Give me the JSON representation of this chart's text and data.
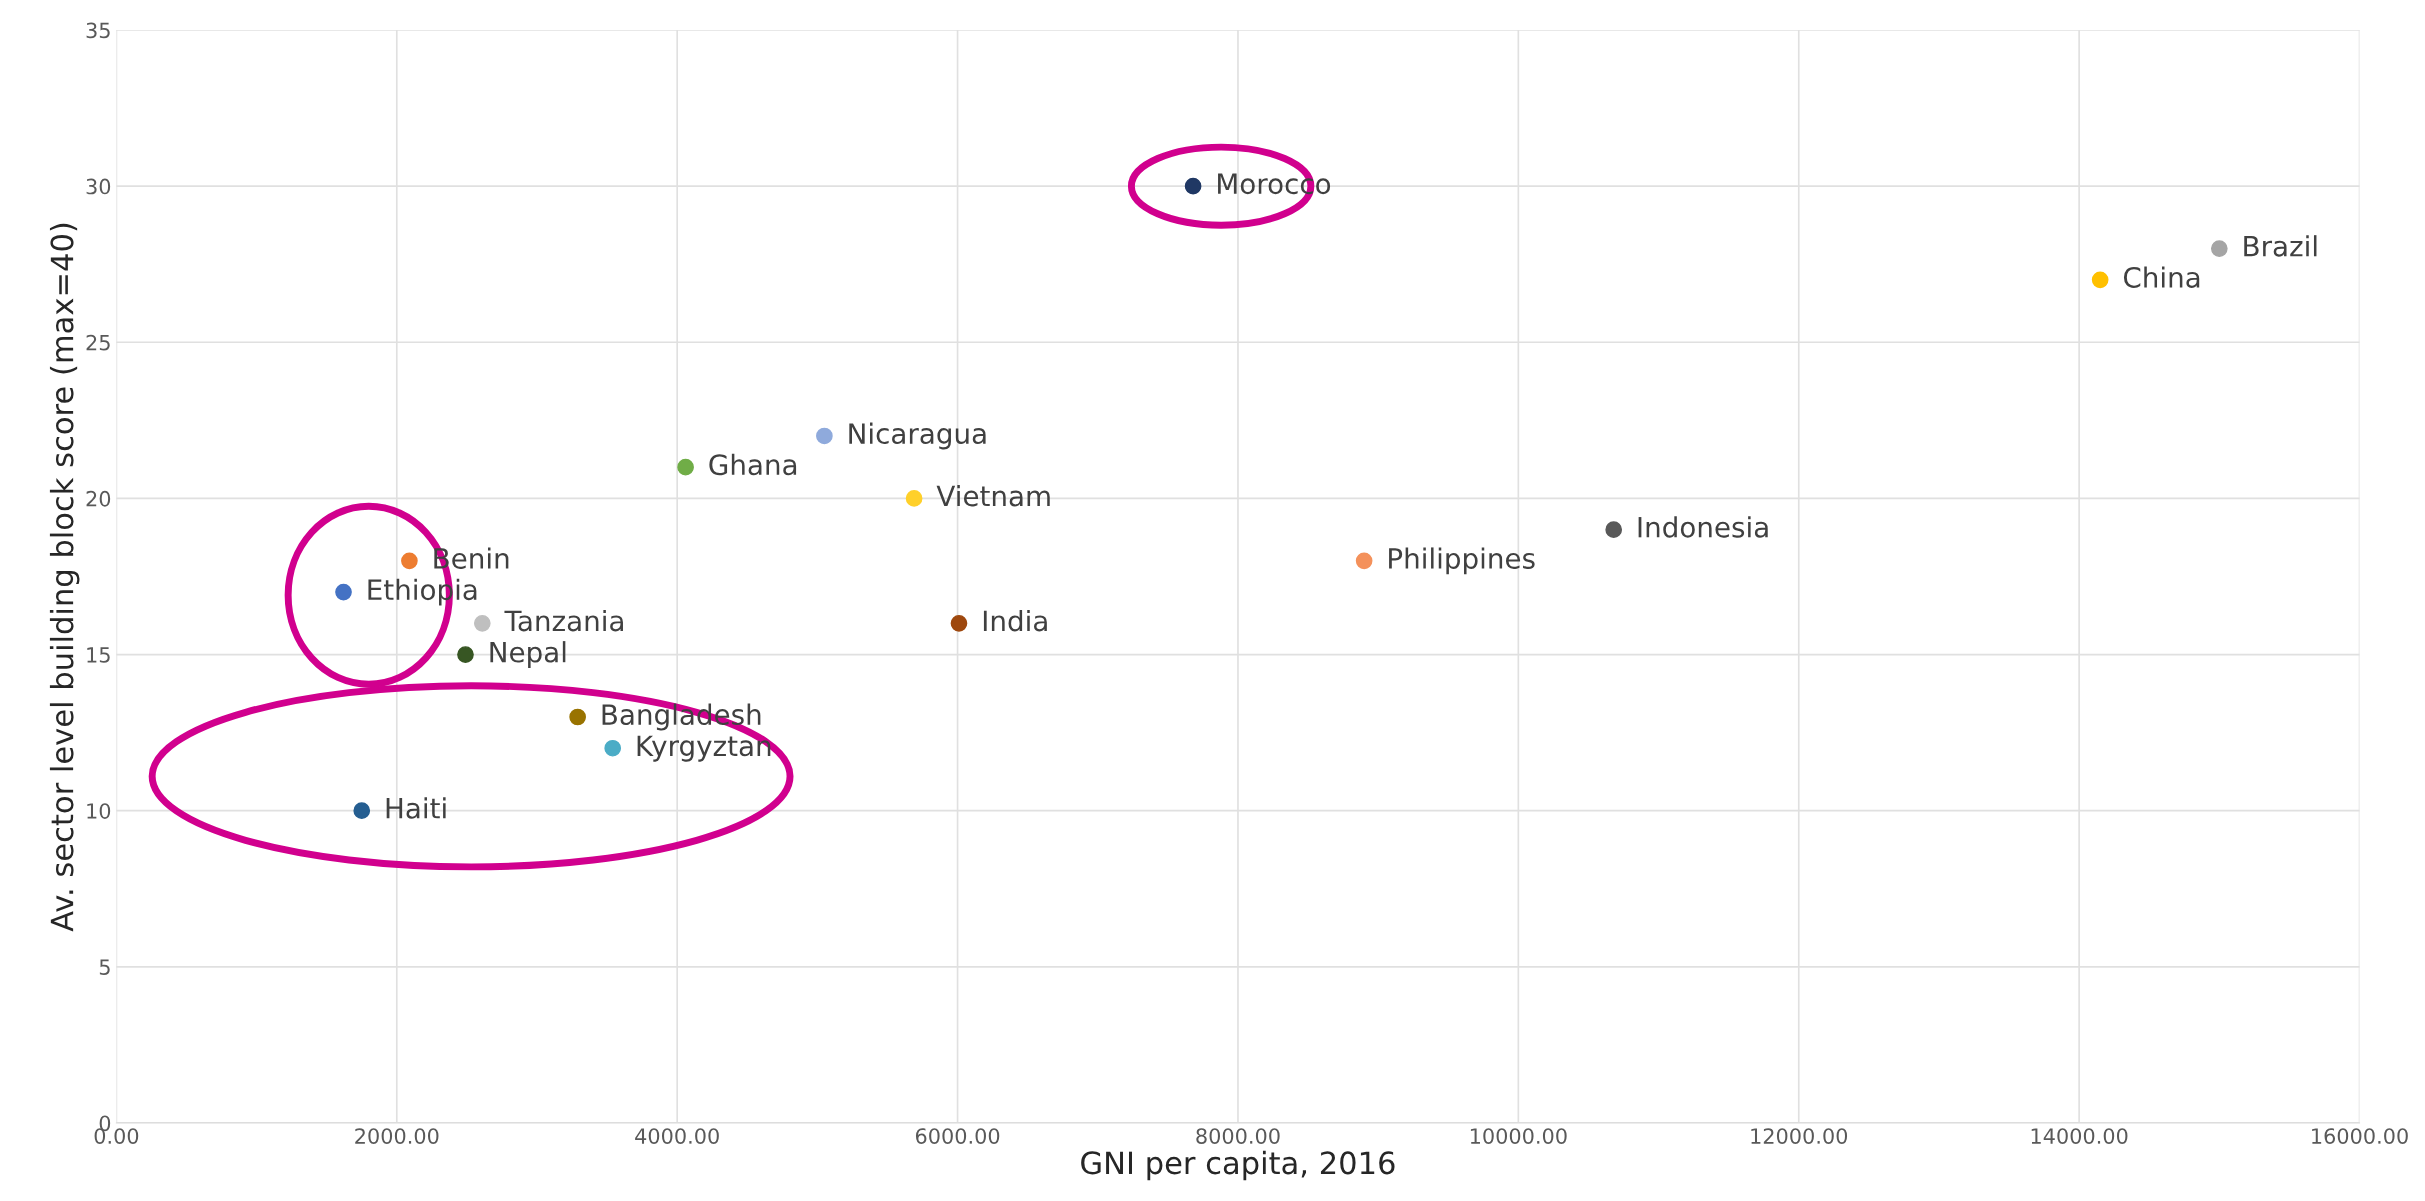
{
  "chart_data": {
    "type": "scatter",
    "xlabel": "GNI per capita, 2016",
    "ylabel": "Av. sector level building block score (max=40)",
    "xlim": [
      0,
      16000
    ],
    "ylim": [
      0,
      35
    ],
    "xticks": [
      {
        "value": 0,
        "label": "0.00"
      },
      {
        "value": 2000,
        "label": "2000.00"
      },
      {
        "value": 4000,
        "label": "4000.00"
      },
      {
        "value": 6000,
        "label": "6000.00"
      },
      {
        "value": 8000,
        "label": "8000.00"
      },
      {
        "value": 10000,
        "label": "10000.00"
      },
      {
        "value": 12000,
        "label": "12000.00"
      },
      {
        "value": 14000,
        "label": "14000.00"
      },
      {
        "value": 16000,
        "label": "16000.00"
      }
    ],
    "yticks": [
      0,
      5,
      10,
      15,
      20,
      25,
      30,
      35
    ],
    "grid": true,
    "legend": false,
    "marker": "circle",
    "series": [
      {
        "name": "Morocco",
        "color": "#203864",
        "x": [
          7680
        ],
        "values": [
          30
        ]
      },
      {
        "name": "Brazil",
        "color": "#a5a5a5",
        "x": [
          15000
        ],
        "values": [
          28
        ]
      },
      {
        "name": "China",
        "color": "#ffc000",
        "x": [
          14150
        ],
        "values": [
          27
        ]
      },
      {
        "name": "Nicaragua",
        "color": "#8faadc",
        "x": [
          5050
        ],
        "values": [
          22
        ]
      },
      {
        "name": "Ghana",
        "color": "#70ad47",
        "x": [
          4060
        ],
        "values": [
          21
        ]
      },
      {
        "name": "Vietnam",
        "color": "#ffd02a",
        "x": [
          5690
        ],
        "values": [
          20
        ]
      },
      {
        "name": "Indonesia",
        "color": "#595959",
        "x": [
          10680
        ],
        "values": [
          19
        ]
      },
      {
        "name": "Philippines",
        "color": "#f4915b",
        "x": [
          8900
        ],
        "values": [
          18
        ]
      },
      {
        "name": "Benin",
        "color": "#ed7d31",
        "x": [
          2090
        ],
        "values": [
          18
        ]
      },
      {
        "name": "Ethiopia",
        "color": "#4472c4",
        "x": [
          1620
        ],
        "values": [
          17
        ]
      },
      {
        "name": "Tanzania",
        "color": "#bfbfbf",
        "x": [
          2610
        ],
        "values": [
          16
        ]
      },
      {
        "name": "India",
        "color": "#9e480e",
        "x": [
          6010
        ],
        "values": [
          16
        ]
      },
      {
        "name": "Nepal",
        "color": "#375623",
        "x": [
          2490
        ],
        "values": [
          15
        ]
      },
      {
        "name": "Bangladesh",
        "color": "#997300",
        "x": [
          3290
        ],
        "values": [
          13
        ]
      },
      {
        "name": "Kyrgyztan",
        "color": "#4bacc6",
        "x": [
          3540
        ],
        "values": [
          12
        ]
      },
      {
        "name": "Haiti",
        "color": "#255e91",
        "x": [
          1750
        ],
        "values": [
          10
        ]
      }
    ]
  }
}
